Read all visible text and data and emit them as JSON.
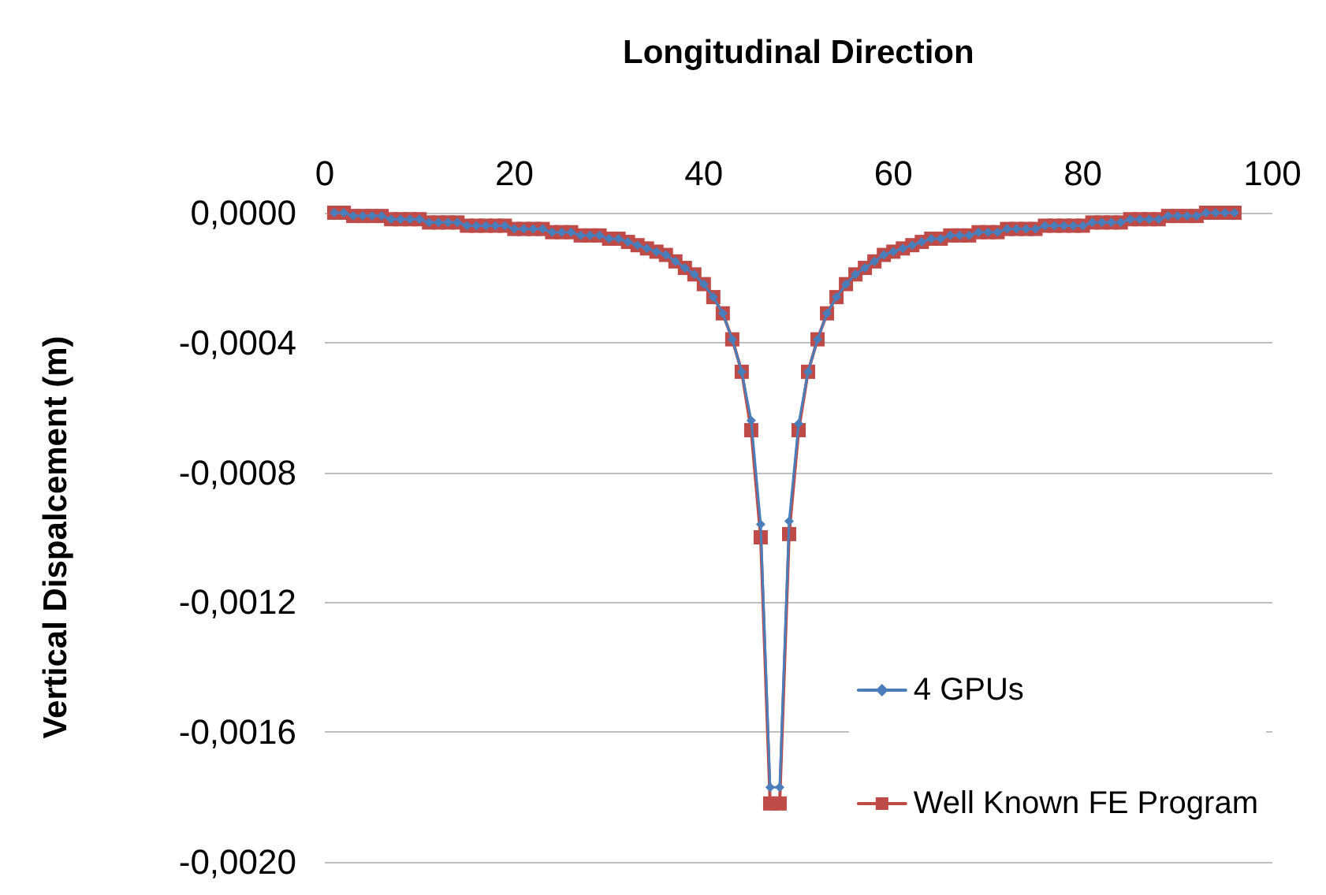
{
  "chart_data": {
    "type": "line",
    "title": "Longitudinal Direction",
    "ylabel": "Vertical Dispalcement (m)",
    "x": [
      1,
      2,
      3,
      4,
      5,
      6,
      7,
      8,
      9,
      10,
      11,
      12,
      13,
      14,
      15,
      16,
      17,
      18,
      19,
      20,
      21,
      22,
      23,
      24,
      25,
      26,
      27,
      28,
      29,
      30,
      31,
      32,
      33,
      34,
      35,
      36,
      37,
      38,
      39,
      40,
      41,
      42,
      43,
      44,
      45,
      46,
      47,
      48,
      49,
      50,
      51,
      52,
      53,
      54,
      55,
      56,
      57,
      58,
      59,
      60,
      61,
      62,
      63,
      64,
      65,
      66,
      67,
      68,
      69,
      70,
      71,
      72,
      73,
      74,
      75,
      76,
      77,
      78,
      79,
      80,
      81,
      82,
      83,
      84,
      85,
      86,
      87,
      88,
      89,
      90,
      91,
      92,
      93,
      94,
      95,
      96
    ],
    "series": [
      {
        "name": "4 GPUs",
        "color": "#4a7ebb",
        "marker": "diamond",
        "values": [
          0,
          0,
          -1e-05,
          -1e-05,
          -1e-05,
          -1e-05,
          -2e-05,
          -2e-05,
          -2e-05,
          -2e-05,
          -3e-05,
          -3e-05,
          -3e-05,
          -3e-05,
          -4e-05,
          -4e-05,
          -4e-05,
          -4e-05,
          -4e-05,
          -5e-05,
          -5e-05,
          -5e-05,
          -5e-05,
          -6e-05,
          -6e-05,
          -6e-05,
          -7e-05,
          -7e-05,
          -7e-05,
          -8e-05,
          -8e-05,
          -9e-05,
          -0.0001,
          -0.00011,
          -0.00012,
          -0.00013,
          -0.00015,
          -0.00017,
          -0.00019,
          -0.00022,
          -0.00026,
          -0.00031,
          -0.00039,
          -0.00049,
          -0.00064,
          -0.00096,
          -0.00177,
          -0.00177,
          -0.00095,
          -0.00065,
          -0.00049,
          -0.00039,
          -0.00031,
          -0.00026,
          -0.00022,
          -0.00019,
          -0.00017,
          -0.00015,
          -0.00013,
          -0.00012,
          -0.00011,
          -0.0001,
          -9e-05,
          -8e-05,
          -8e-05,
          -7e-05,
          -7e-05,
          -7e-05,
          -6e-05,
          -6e-05,
          -6e-05,
          -5e-05,
          -5e-05,
          -5e-05,
          -5e-05,
          -4e-05,
          -4e-05,
          -4e-05,
          -4e-05,
          -4e-05,
          -3e-05,
          -3e-05,
          -3e-05,
          -3e-05,
          -2e-05,
          -2e-05,
          -2e-05,
          -2e-05,
          -1e-05,
          -1e-05,
          -1e-05,
          -1e-05,
          0,
          0,
          0,
          0
        ]
      },
      {
        "name": "Well Known FE Program",
        "color": "#be4b48",
        "marker": "square",
        "values": [
          0,
          0,
          -1e-05,
          -1e-05,
          -1e-05,
          -1e-05,
          -2e-05,
          -2e-05,
          -2e-05,
          -2e-05,
          -3e-05,
          -3e-05,
          -3e-05,
          -3e-05,
          -4e-05,
          -4e-05,
          -4e-05,
          -4e-05,
          -4e-05,
          -5e-05,
          -5e-05,
          -5e-05,
          -5e-05,
          -6e-05,
          -6e-05,
          -6e-05,
          -7e-05,
          -7e-05,
          -7e-05,
          -8e-05,
          -8e-05,
          -9e-05,
          -0.0001,
          -0.00011,
          -0.00012,
          -0.00013,
          -0.00015,
          -0.00017,
          -0.00019,
          -0.00022,
          -0.00026,
          -0.00031,
          -0.00039,
          -0.00049,
          -0.00067,
          -0.001,
          -0.00182,
          -0.00182,
          -0.00099,
          -0.00067,
          -0.00049,
          -0.00039,
          -0.00031,
          -0.00026,
          -0.00022,
          -0.00019,
          -0.00017,
          -0.00015,
          -0.00013,
          -0.00012,
          -0.00011,
          -0.0001,
          -9e-05,
          -8e-05,
          -8e-05,
          -7e-05,
          -7e-05,
          -7e-05,
          -6e-05,
          -6e-05,
          -6e-05,
          -5e-05,
          -5e-05,
          -5e-05,
          -5e-05,
          -4e-05,
          -4e-05,
          -4e-05,
          -4e-05,
          -4e-05,
          -3e-05,
          -3e-05,
          -3e-05,
          -3e-05,
          -2e-05,
          -2e-05,
          -2e-05,
          -2e-05,
          -1e-05,
          -1e-05,
          -1e-05,
          -1e-05,
          0,
          0,
          0,
          0
        ]
      }
    ],
    "xlim": [
      0,
      100
    ],
    "xticks": [
      0,
      20,
      40,
      60,
      80,
      100
    ],
    "ylim": [
      -0.002,
      0
    ],
    "yticks": [
      {
        "value": 0,
        "label": "0,0000"
      },
      {
        "value": -0.0004,
        "label": "-0,0004"
      },
      {
        "value": -0.0008,
        "label": "-0,0008"
      },
      {
        "value": -0.0012,
        "label": "-0,0012"
      },
      {
        "value": -0.0016,
        "label": "-0,0016"
      },
      {
        "value": -0.002,
        "label": "-0,0020"
      }
    ],
    "grid": "y",
    "legend": "bottom right",
    "line_style": "solid"
  }
}
